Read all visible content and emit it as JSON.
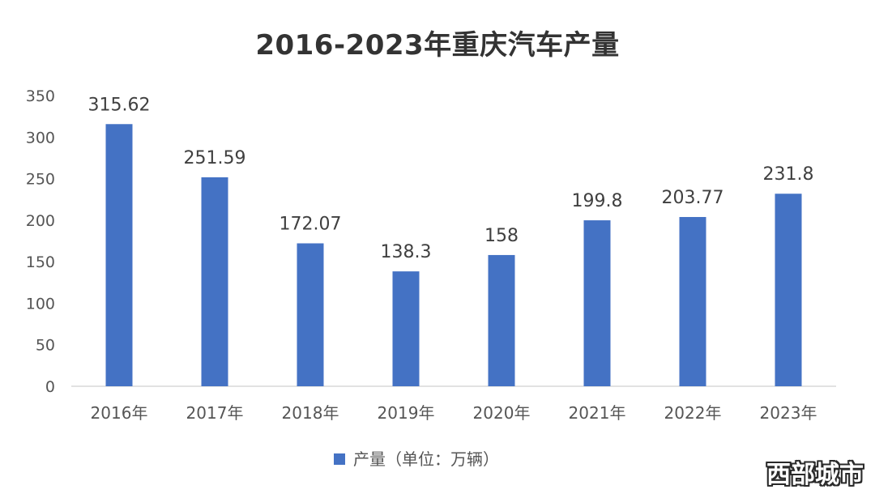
{
  "chart_data": {
    "type": "bar",
    "title": "2016-2023年重庆汽车产量",
    "categories": [
      "2016年",
      "2017年",
      "2018年",
      "2019年",
      "2020年",
      "2021年",
      "2022年",
      "2023年"
    ],
    "series": [
      {
        "name": "产量（单位：万辆）",
        "values": [
          315.62,
          251.59,
          172.07,
          138.3,
          158,
          199.8,
          203.77,
          231.8
        ],
        "labels": [
          "315.62",
          "251.59",
          "172.07",
          "138.3",
          "158",
          "199.8",
          "203.77",
          "231.8"
        ]
      }
    ],
    "y_ticks": [
      "0",
      "50",
      "100",
      "150",
      "200",
      "250",
      "300",
      "350"
    ],
    "ylim": [
      0,
      350
    ],
    "grid": false,
    "legend_position": "bottom",
    "bar_color": "#4472c4"
  },
  "watermark": "西部城市"
}
